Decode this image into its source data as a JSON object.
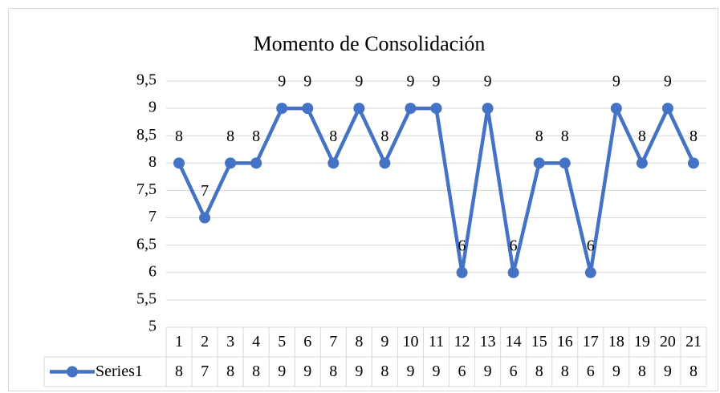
{
  "chart_data": {
    "type": "line",
    "title": "Momento de Consolidación",
    "categories": [
      1,
      2,
      3,
      4,
      5,
      6,
      7,
      8,
      9,
      10,
      11,
      12,
      13,
      14,
      15,
      16,
      17,
      18,
      19,
      20,
      21
    ],
    "series": [
      {
        "name": "Series1",
        "color": "#4472c4",
        "values": [
          8,
          7,
          8,
          8,
          9,
          9,
          8,
          9,
          8,
          9,
          9,
          6,
          9,
          6,
          8,
          8,
          6,
          9,
          8,
          9,
          8
        ]
      }
    ],
    "ylim": [
      5,
      9.5
    ],
    "yticks": [
      5,
      {
        "value": 5.5,
        "label": "5,5"
      },
      6,
      {
        "value": 6.5,
        "label": "6,5"
      },
      7,
      {
        "value": 7.5,
        "label": "7,5"
      },
      8,
      {
        "value": 8.5,
        "label": "8,5"
      },
      9,
      {
        "value": 9.5,
        "label": "9,5"
      }
    ],
    "grid": true,
    "data_labels": true,
    "data_table": true
  }
}
